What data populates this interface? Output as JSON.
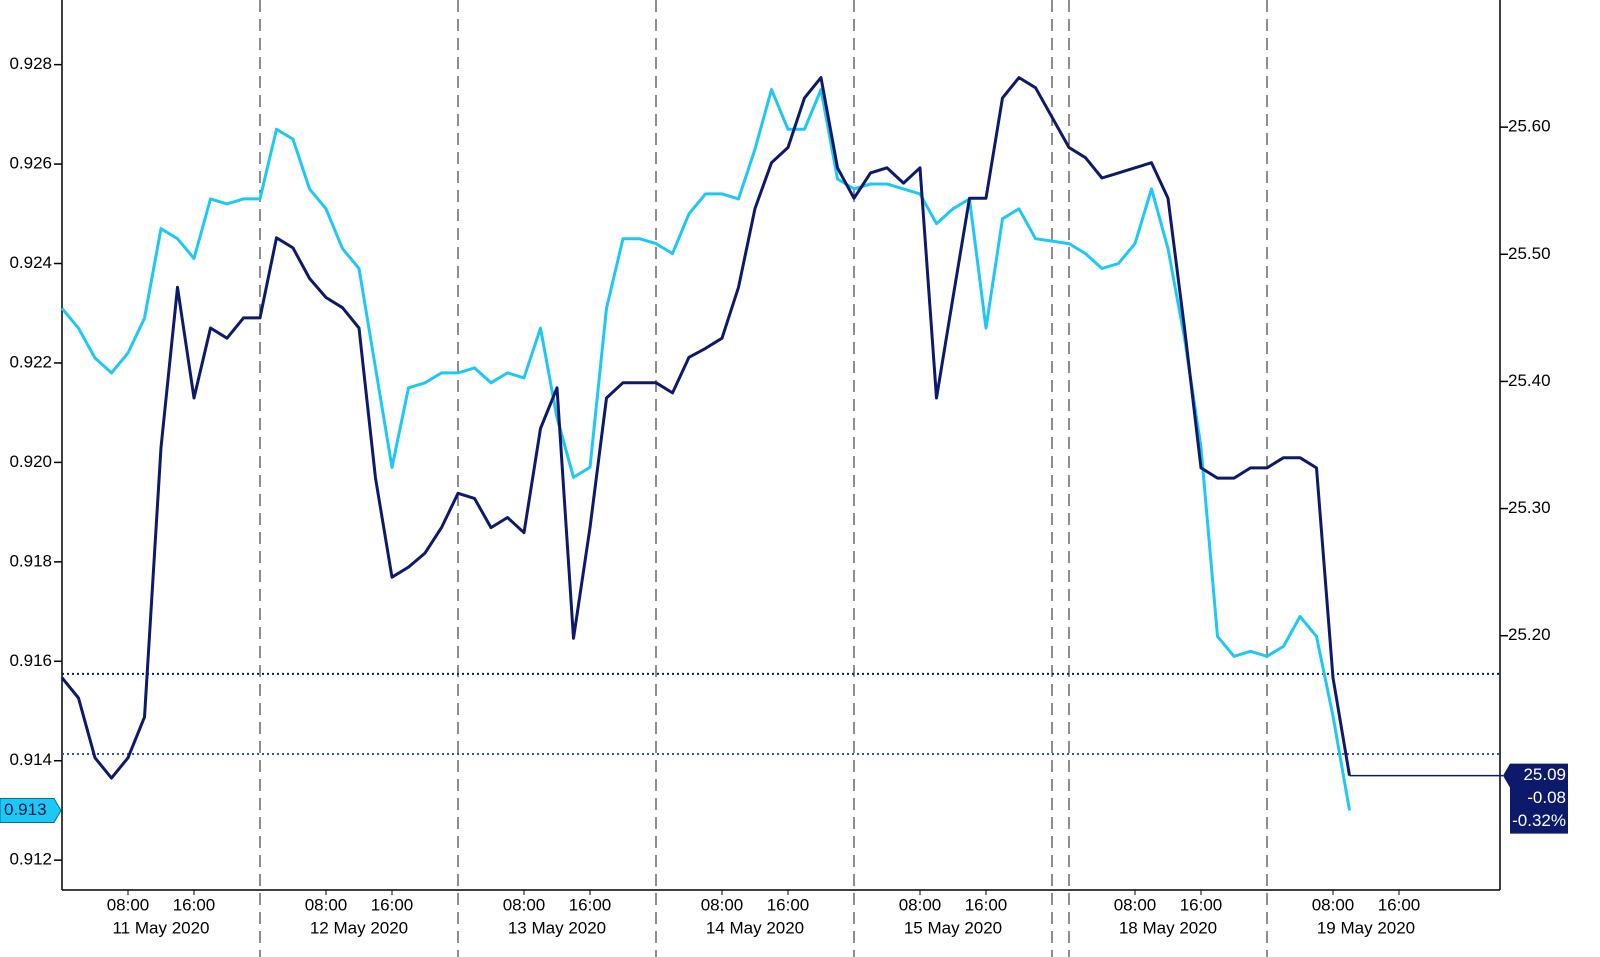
{
  "chart_data": {
    "type": "line",
    "categories": [
      null,
      null,
      null,
      null,
      "08:00",
      null,
      null,
      null,
      "16:00",
      null,
      null,
      null,
      null,
      null,
      null,
      null,
      "08:00",
      null,
      null,
      null,
      "16:00",
      null,
      null,
      null,
      null,
      null,
      null,
      null,
      "08:00",
      null,
      null,
      null,
      "16:00",
      null,
      null,
      null,
      null,
      null,
      null,
      null,
      "08:00",
      null,
      null,
      null,
      "16:00",
      null,
      null,
      null,
      null,
      null,
      null,
      null,
      "08:00",
      null,
      null,
      null,
      "16:00",
      null,
      null,
      null,
      null,
      null,
      null,
      null,
      "08:00",
      null,
      null,
      null,
      "16:00",
      null,
      null,
      null,
      null,
      null,
      null,
      null,
      "08:00",
      null,
      null,
      null,
      "16:00",
      null,
      null,
      null
    ],
    "date_labels": [
      "11 May 2020",
      "12 May 2020",
      "13 May 2020",
      "14 May 2020",
      "15 May 2020",
      "18 May 2020",
      "19 May 2020"
    ],
    "series": [
      {
        "color": "#1ec8f5",
        "axis": "y",
        "last_value_label": 0.913,
        "values": [
          0.9231,
          0.9227,
          0.9221,
          0.9218,
          0.9222,
          0.9229,
          0.9247,
          0.9245,
          0.9241,
          0.9253,
          0.9252,
          0.9253,
          0.9253,
          0.9267,
          0.9265,
          0.9255,
          0.9251,
          0.9243,
          0.9239,
          0.9219,
          0.9199,
          0.9215,
          0.9216,
          0.9218,
          0.9218,
          0.9219,
          0.9216,
          0.9218,
          0.9217,
          0.9227,
          0.9209,
          0.9197,
          0.9199,
          0.9231,
          0.9245,
          0.9245,
          0.9244,
          0.9242,
          0.925,
          0.9254,
          0.9254,
          0.9253,
          0.9263,
          0.9275,
          0.9267,
          0.9267,
          0.9275,
          0.9257,
          0.9255,
          0.9256,
          0.9256,
          0.9255,
          0.9254,
          0.9248,
          0.9251,
          0.9253,
          0.9227,
          0.9249,
          0.9251,
          0.9245,
          0.9244,
          0.9242,
          0.9239,
          0.924,
          0.9244,
          0.9255,
          0.9243,
          0.9225,
          0.9203,
          0.9165,
          0.9161,
          0.9162,
          0.9161,
          0.9163,
          0.9169,
          0.9165,
          0.9149,
          0.913,
          null,
          null,
          null,
          null,
          null,
          null
        ]
      },
      {
        "color": "#0d1a6b",
        "axis": "y2",
        "last_value_label": 25.09,
        "change": -0.08,
        "change_pct": {
          "value": -0.32,
          "label": "-0.32%"
        },
        "values": [
          25.167,
          25.151,
          25.104,
          25.088,
          25.104,
          25.136,
          25.348,
          25.474,
          25.387,
          25.442,
          25.434,
          25.45,
          25.45,
          25.513,
          25.505,
          25.481,
          25.466,
          25.458,
          25.442,
          25.324,
          25.246,
          25.254,
          25.265,
          25.285,
          25.312,
          25.308,
          25.285,
          25.293,
          25.281,
          25.363,
          25.395,
          25.198,
          25.285,
          25.387,
          25.399,
          25.399,
          25.399,
          25.391,
          25.419,
          25.426,
          25.434,
          25.474,
          25.536,
          25.572,
          25.584,
          25.623,
          25.639,
          25.568,
          25.544,
          25.564,
          25.568,
          25.556,
          25.568,
          25.387,
          25.466,
          25.544,
          25.544,
          25.623,
          25.639,
          25.631,
          25.584,
          25.576,
          25.56,
          25.564,
          25.568,
          25.572,
          25.544,
          25.442,
          25.332,
          25.324,
          25.324,
          25.332,
          25.332,
          25.34,
          25.34,
          25.332,
          25.167,
          25.09,
          null,
          null,
          null,
          null,
          null,
          null
        ]
      }
    ],
    "ylim": [
      0.9114,
      0.9293
    ],
    "yticks": [
      0.912,
      0.914,
      0.916,
      0.918,
      {
        "value": 0.92,
        "label": "0.920"
      },
      0.922,
      0.924,
      0.926,
      0.928
    ],
    "y2lim": [
      25.0,
      25.7
    ],
    "y2ticks": [
      {
        "value": 25.2,
        "label": "25.20"
      },
      {
        "value": 25.3,
        "label": "25.30"
      },
      {
        "value": 25.4,
        "label": "25.40"
      },
      {
        "value": 25.5,
        "label": "25.50"
      },
      {
        "value": 25.6,
        "label": "25.60"
      }
    ],
    "reference_lines": [
      {
        "value": 25.17,
        "axis": "y2",
        "color": "#0d1a6b"
      },
      {
        "value": 25.107,
        "axis": "y2",
        "color": "#3a4fa8"
      }
    ]
  }
}
